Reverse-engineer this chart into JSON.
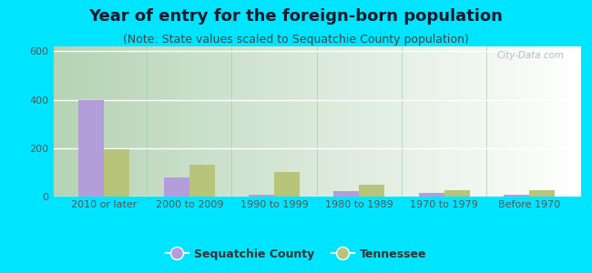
{
  "title": "Year of entry for the foreign-born population",
  "subtitle": "(Note: State values scaled to Sequatchie County population)",
  "categories": [
    "2010 or later",
    "2000 to 2009",
    "1990 to 1999",
    "1980 to 1989",
    "1970 to 1979",
    "Before 1970"
  ],
  "sequatchie_values": [
    400,
    80,
    8,
    22,
    15,
    7
  ],
  "tennessee_values": [
    195,
    130,
    100,
    48,
    25,
    28
  ],
  "sequatchie_color": "#b39ddb",
  "tennessee_color": "#b8c47a",
  "background_outer": "#00e5ff",
  "ylim": [
    0,
    620
  ],
  "yticks": [
    0,
    200,
    400,
    600
  ],
  "bar_width": 0.3,
  "title_fontsize": 13,
  "subtitle_fontsize": 9,
  "tick_fontsize": 8,
  "legend_fontsize": 9,
  "watermark": "City-Data.com"
}
